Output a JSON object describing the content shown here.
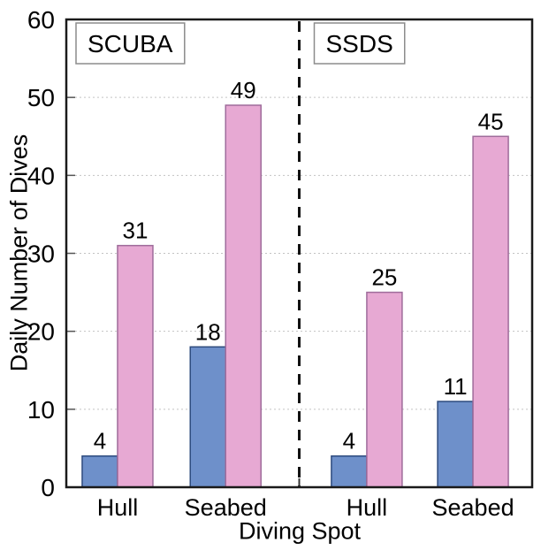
{
  "chart_data": {
    "type": "bar",
    "title": "",
    "xlabel": "Diving Spot",
    "ylabel": "Daily Number of Dives",
    "ylim": [
      0,
      60
    ],
    "ytick_step": 10,
    "yticks": [
      0,
      10,
      20,
      30,
      40,
      50,
      60
    ],
    "grid": "horizontal dotted, on",
    "legend": "none",
    "bar_value_labels": true,
    "separator": "dashed vertical line between panels",
    "panels": [
      {
        "label": "SCUBA",
        "categories": [
          "Hull",
          "Seabed"
        ],
        "series": [
          {
            "name": "blue-series",
            "color": "#6E90CA",
            "border": "#2E4B7E",
            "values": [
              4,
              18
            ]
          },
          {
            "name": "pink-series",
            "color": "#E7A9D3",
            "border": "#9F6C9B",
            "values": [
              31,
              49
            ]
          }
        ]
      },
      {
        "label": "SSDS",
        "categories": [
          "Hull",
          "Seabed"
        ],
        "series": [
          {
            "name": "blue-series",
            "color": "#6E90CA",
            "border": "#2E4B7E",
            "values": [
              4,
              11
            ]
          },
          {
            "name": "pink-series",
            "color": "#E7A9D3",
            "border": "#9F6C9B",
            "values": [
              25,
              45
            ]
          }
        ]
      }
    ],
    "colors": {
      "background": "#ffffff",
      "axis": "#1a1a1a",
      "grid": "#c3c3c3",
      "tick": "#555555",
      "panel_box_border": "#8c8c8c",
      "text": "#000000"
    }
  }
}
